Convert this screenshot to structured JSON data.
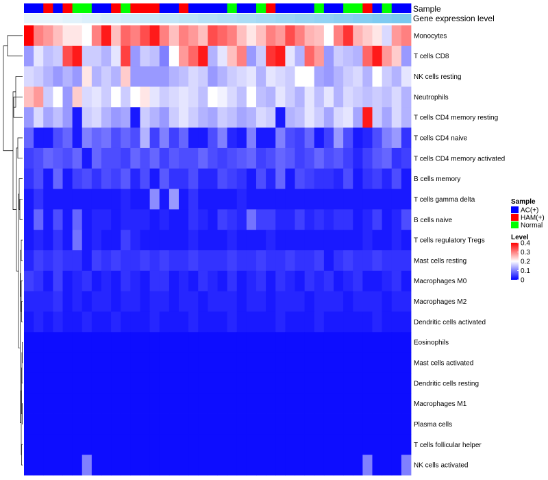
{
  "chart_data": {
    "type": "heatmap",
    "annotation_labels": [
      "Sample",
      "Gene expression level"
    ],
    "sample_groups": [
      "AC(+)",
      "AC(+)",
      "HAM(+)",
      "AC(+)",
      "HAM(+)",
      "Normal",
      "Normal",
      "AC(+)",
      "AC(+)",
      "HAM(+)",
      "Normal",
      "HAM(+)",
      "HAM(+)",
      "HAM(+)",
      "AC(+)",
      "AC(+)",
      "HAM(+)",
      "AC(+)",
      "AC(+)",
      "AC(+)",
      "AC(+)",
      "Normal",
      "AC(+)",
      "AC(+)",
      "Normal",
      "HAM(+)",
      "AC(+)",
      "AC(+)",
      "AC(+)",
      "AC(+)",
      "Normal",
      "AC(+)",
      "AC(+)",
      "Normal",
      "Normal",
      "HAM(+)",
      "AC(+)",
      "Normal",
      "AC(+)",
      "AC(+)"
    ],
    "gene_expression_level": [
      0.05,
      0.05,
      0.05,
      0.05,
      0.06,
      0.06,
      0.07,
      0.07,
      0.08,
      0.08,
      0.09,
      0.09,
      0.1,
      0.1,
      0.11,
      0.11,
      0.12,
      0.12,
      0.13,
      0.13,
      0.14,
      0.14,
      0.15,
      0.15,
      0.16,
      0.16,
      0.17,
      0.17,
      0.18,
      0.18,
      0.19,
      0.19,
      0.2,
      0.2,
      0.21,
      0.21,
      0.22,
      0.22,
      0.23,
      0.23
    ],
    "rows": [
      "Monocytes",
      "T cells CD8",
      "NK cells resting",
      "Neutrophils",
      "T cells CD4 memory resting",
      "T cells CD4 naive",
      "T cells CD4 memory activated",
      "B cells memory",
      "T cells gamma delta",
      "B cells naive",
      "T cells regulatory  Tregs",
      "Mast cells resting",
      "Macrophages M0",
      "Macrophages M2",
      "Dendritic cells activated",
      "Eosinophils",
      "Mast cells activated",
      "Dendritic cells resting",
      "Macrophages M1",
      "Plasma cells",
      "T cells follicular helper",
      "NK cells activated"
    ],
    "values": [
      [
        0.4,
        0.3,
        0.28,
        0.25,
        0.22,
        0.22,
        0.2,
        0.3,
        0.38,
        0.25,
        0.32,
        0.3,
        0.34,
        0.38,
        0.3,
        0.25,
        0.3,
        0.28,
        0.25,
        0.34,
        0.32,
        0.3,
        0.25,
        0.22,
        0.25,
        0.3,
        0.28,
        0.34,
        0.3,
        0.26,
        0.25,
        0.2,
        0.3,
        0.36,
        0.26,
        0.24,
        0.22,
        0.17,
        0.28,
        0.3
      ],
      [
        0.12,
        0.18,
        0.15,
        0.16,
        0.34,
        0.38,
        0.16,
        0.16,
        0.14,
        0.18,
        0.35,
        0.12,
        0.16,
        0.15,
        0.1,
        0.2,
        0.28,
        0.32,
        0.38,
        0.14,
        0.18,
        0.25,
        0.3,
        0.12,
        0.16,
        0.36,
        0.38,
        0.18,
        0.14,
        0.32,
        0.28,
        0.12,
        0.16,
        0.15,
        0.14,
        0.32,
        0.38,
        0.28,
        0.24,
        0.12
      ],
      [
        0.17,
        0.16,
        0.14,
        0.12,
        0.14,
        0.12,
        0.22,
        0.14,
        0.16,
        0.14,
        0.24,
        0.12,
        0.12,
        0.12,
        0.12,
        0.14,
        0.15,
        0.17,
        0.16,
        0.12,
        0.14,
        0.16,
        0.17,
        0.18,
        0.14,
        0.18,
        0.17,
        0.16,
        0.2,
        0.2,
        0.13,
        0.12,
        0.14,
        0.16,
        0.17,
        0.14,
        0.2,
        0.16,
        0.14,
        0.18
      ],
      [
        0.25,
        0.28,
        0.16,
        0.2,
        0.12,
        0.24,
        0.17,
        0.18,
        0.16,
        0.2,
        0.16,
        0.2,
        0.22,
        0.18,
        0.16,
        0.17,
        0.18,
        0.17,
        0.15,
        0.2,
        0.19,
        0.17,
        0.15,
        0.2,
        0.15,
        0.14,
        0.18,
        0.16,
        0.14,
        0.18,
        0.15,
        0.18,
        0.14,
        0.17,
        0.16,
        0.15,
        0.16,
        0.15,
        0.17,
        0.14
      ],
      [
        0.12,
        0.17,
        0.13,
        0.15,
        0.12,
        0.02,
        0.16,
        0.17,
        0.14,
        0.12,
        0.13,
        0.02,
        0.16,
        0.14,
        0.12,
        0.16,
        0.18,
        0.16,
        0.14,
        0.13,
        0.16,
        0.15,
        0.13,
        0.14,
        0.17,
        0.16,
        0.02,
        0.14,
        0.15,
        0.18,
        0.16,
        0.13,
        0.17,
        0.18,
        0.13,
        0.38,
        0.16,
        0.13,
        0.17,
        0.14
      ],
      [
        0.08,
        0.02,
        0.02,
        0.06,
        0.08,
        0.02,
        0.1,
        0.08,
        0.09,
        0.06,
        0.08,
        0.06,
        0.14,
        0.05,
        0.1,
        0.05,
        0.08,
        0.02,
        0.02,
        0.06,
        0.1,
        0.03,
        0.02,
        0.1,
        0.02,
        0.02,
        0.1,
        0.06,
        0.05,
        0.08,
        0.02,
        0.05,
        0.12,
        0.06,
        0.02,
        0.03,
        0.06,
        0.1,
        0.12,
        0.04
      ],
      [
        0.05,
        0.06,
        0.08,
        0.07,
        0.06,
        0.08,
        0.02,
        0.08,
        0.06,
        0.06,
        0.05,
        0.08,
        0.06,
        0.08,
        0.05,
        0.07,
        0.06,
        0.06,
        0.08,
        0.06,
        0.05,
        0.06,
        0.07,
        0.08,
        0.05,
        0.06,
        0.08,
        0.07,
        0.05,
        0.06,
        0.08,
        0.06,
        0.07,
        0.05,
        0.03,
        0.05,
        0.07,
        0.08,
        0.04,
        0.05
      ],
      [
        0.04,
        0.06,
        0.02,
        0.08,
        0.02,
        0.05,
        0.06,
        0.04,
        0.06,
        0.05,
        0.07,
        0.03,
        0.06,
        0.02,
        0.07,
        0.04,
        0.04,
        0.06,
        0.03,
        0.03,
        0.06,
        0.05,
        0.04,
        0.02,
        0.06,
        0.03,
        0.08,
        0.02,
        0.06,
        0.05,
        0.04,
        0.04,
        0.03,
        0.06,
        0.02,
        0.04,
        0.05,
        0.03,
        0.06,
        0.02
      ],
      [
        0.02,
        0.04,
        0.02,
        0.02,
        0.02,
        0.02,
        0.02,
        0.02,
        0.02,
        0.02,
        0.03,
        0.02,
        0.02,
        0.11,
        0.02,
        0.12,
        0.02,
        0.04,
        0.02,
        0.02,
        0.02,
        0.02,
        0.03,
        0.02,
        0.02,
        0.02,
        0.02,
        0.02,
        0.02,
        0.02,
        0.02,
        0.02,
        0.02,
        0.02,
        0.02,
        0.02,
        0.02,
        0.02,
        0.02,
        0.02
      ],
      [
        0.02,
        0.08,
        0.02,
        0.06,
        0.02,
        0.08,
        0.02,
        0.03,
        0.03,
        0.02,
        0.03,
        0.03,
        0.03,
        0.02,
        0.03,
        0.02,
        0.02,
        0.04,
        0.03,
        0.02,
        0.05,
        0.04,
        0.03,
        0.09,
        0.05,
        0.05,
        0.03,
        0.03,
        0.05,
        0.03,
        0.04,
        0.03,
        0.04,
        0.04,
        0.02,
        0.03,
        0.05,
        0.02,
        0.03,
        0.06
      ],
      [
        0.02,
        0.03,
        0.02,
        0.04,
        0.02,
        0.09,
        0.02,
        0.03,
        0.02,
        0.02,
        0.05,
        0.03,
        0.02,
        0.02,
        0.02,
        0.02,
        0.02,
        0.03,
        0.02,
        0.02,
        0.02,
        0.03,
        0.02,
        0.02,
        0.02,
        0.03,
        0.02,
        0.02,
        0.02,
        0.02,
        0.02,
        0.02,
        0.02,
        0.02,
        0.02,
        0.03,
        0.02,
        0.02,
        0.03,
        0.02
      ],
      [
        0.03,
        0.05,
        0.04,
        0.05,
        0.04,
        0.04,
        0.02,
        0.05,
        0.04,
        0.05,
        0.04,
        0.04,
        0.05,
        0.04,
        0.05,
        0.04,
        0.04,
        0.05,
        0.04,
        0.04,
        0.04,
        0.05,
        0.04,
        0.04,
        0.05,
        0.04,
        0.04,
        0.05,
        0.04,
        0.04,
        0.05,
        0.02,
        0.04,
        0.05,
        0.04,
        0.04,
        0.05,
        0.04,
        0.04,
        0.04
      ],
      [
        0.05,
        0.04,
        0.02,
        0.05,
        0.02,
        0.03,
        0.04,
        0.02,
        0.03,
        0.02,
        0.04,
        0.03,
        0.02,
        0.04,
        0.04,
        0.02,
        0.03,
        0.02,
        0.04,
        0.03,
        0.02,
        0.04,
        0.02,
        0.03,
        0.04,
        0.02,
        0.04,
        0.03,
        0.02,
        0.04,
        0.03,
        0.04,
        0.02,
        0.03,
        0.04,
        0.02,
        0.02,
        0.03,
        0.04,
        0.02
      ],
      [
        0.03,
        0.03,
        0.03,
        0.04,
        0.02,
        0.03,
        0.02,
        0.03,
        0.03,
        0.02,
        0.03,
        0.03,
        0.02,
        0.03,
        0.03,
        0.02,
        0.03,
        0.03,
        0.02,
        0.03,
        0.03,
        0.03,
        0.02,
        0.03,
        0.03,
        0.02,
        0.03,
        0.03,
        0.03,
        0.02,
        0.03,
        0.03,
        0.03,
        0.02,
        0.03,
        0.03,
        0.03,
        0.02,
        0.03,
        0.03
      ],
      [
        0.02,
        0.03,
        0.02,
        0.03,
        0.02,
        0.02,
        0.03,
        0.02,
        0.02,
        0.03,
        0.02,
        0.02,
        0.02,
        0.03,
        0.02,
        0.02,
        0.02,
        0.03,
        0.02,
        0.02,
        0.02,
        0.03,
        0.02,
        0.02,
        0.02,
        0.02,
        0.03,
        0.02,
        0.02,
        0.02,
        0.03,
        0.02,
        0.02,
        0.02,
        0.02,
        0.02,
        0.03,
        0.02,
        0.02,
        0.02
      ],
      [
        0.01,
        0.01,
        0.01,
        0.01,
        0.01,
        0.01,
        0.01,
        0.01,
        0.01,
        0.01,
        0.01,
        0.01,
        0.01,
        0.01,
        0.01,
        0.01,
        0.01,
        0.01,
        0.01,
        0.01,
        0.01,
        0.01,
        0.01,
        0.01,
        0.01,
        0.01,
        0.01,
        0.01,
        0.01,
        0.01,
        0.01,
        0.01,
        0.01,
        0.01,
        0.01,
        0.01,
        0.01,
        0.01,
        0.01,
        0.01
      ],
      [
        0.01,
        0.01,
        0.01,
        0.01,
        0.01,
        0.01,
        0.01,
        0.01,
        0.01,
        0.01,
        0.01,
        0.01,
        0.01,
        0.01,
        0.01,
        0.01,
        0.01,
        0.01,
        0.01,
        0.01,
        0.01,
        0.01,
        0.01,
        0.01,
        0.01,
        0.01,
        0.01,
        0.01,
        0.01,
        0.01,
        0.01,
        0.01,
        0.01,
        0.01,
        0.01,
        0.01,
        0.01,
        0.01,
        0.01,
        0.01
      ],
      [
        0.01,
        0.01,
        0.01,
        0.01,
        0.01,
        0.01,
        0.01,
        0.01,
        0.01,
        0.01,
        0.01,
        0.01,
        0.01,
        0.01,
        0.01,
        0.01,
        0.01,
        0.01,
        0.01,
        0.01,
        0.01,
        0.01,
        0.01,
        0.01,
        0.01,
        0.01,
        0.01,
        0.01,
        0.01,
        0.01,
        0.01,
        0.01,
        0.01,
        0.01,
        0.01,
        0.01,
        0.01,
        0.01,
        0.01,
        0.01
      ],
      [
        0.01,
        0.01,
        0.01,
        0.01,
        0.01,
        0.01,
        0.01,
        0.01,
        0.01,
        0.01,
        0.01,
        0.01,
        0.01,
        0.01,
        0.01,
        0.01,
        0.01,
        0.01,
        0.01,
        0.01,
        0.01,
        0.01,
        0.01,
        0.01,
        0.01,
        0.01,
        0.01,
        0.01,
        0.01,
        0.01,
        0.01,
        0.01,
        0.01,
        0.01,
        0.01,
        0.01,
        0.01,
        0.01,
        0.01,
        0.01
      ],
      [
        0.01,
        0.01,
        0.01,
        0.01,
        0.01,
        0.01,
        0.01,
        0.01,
        0.01,
        0.01,
        0.01,
        0.01,
        0.01,
        0.01,
        0.01,
        0.01,
        0.01,
        0.01,
        0.01,
        0.01,
        0.01,
        0.01,
        0.01,
        0.01,
        0.01,
        0.01,
        0.01,
        0.01,
        0.01,
        0.01,
        0.01,
        0.01,
        0.01,
        0.01,
        0.01,
        0.01,
        0.01,
        0.01,
        0.01,
        0.01
      ],
      [
        0.01,
        0.01,
        0.01,
        0.01,
        0.01,
        0.01,
        0.01,
        0.01,
        0.01,
        0.01,
        0.01,
        0.01,
        0.01,
        0.01,
        0.01,
        0.01,
        0.01,
        0.01,
        0.01,
        0.01,
        0.01,
        0.01,
        0.01,
        0.01,
        0.01,
        0.01,
        0.01,
        0.01,
        0.01,
        0.01,
        0.01,
        0.01,
        0.01,
        0.01,
        0.01,
        0.01,
        0.01,
        0.01,
        0.01,
        0.01
      ],
      [
        0.01,
        0.01,
        0.01,
        0.01,
        0.01,
        0.01,
        0.1,
        0.01,
        0.01,
        0.01,
        0.01,
        0.01,
        0.01,
        0.01,
        0.01,
        0.01,
        0.01,
        0.01,
        0.01,
        0.01,
        0.01,
        0.01,
        0.01,
        0.01,
        0.01,
        0.01,
        0.01,
        0.01,
        0.01,
        0.01,
        0.01,
        0.01,
        0.01,
        0.01,
        0.01,
        0.1,
        0.01,
        0.01,
        0.01,
        0.1
      ]
    ],
    "legend": {
      "sample_title": "Sample",
      "sample_items": [
        {
          "label": "AC(+)",
          "color": "#0000ff"
        },
        {
          "label": "HAM(+)",
          "color": "#ff0000"
        },
        {
          "label": "Normal",
          "color": "#00ff00"
        }
      ],
      "level_title": "Level",
      "level_ticks": [
        "0.4",
        "0.3",
        "0.2",
        "0.1",
        "0"
      ],
      "level_range": [
        0,
        0.4
      ],
      "level_low_color": "#0000ff",
      "level_mid_color": "#ffffff",
      "level_high_color": "#ff0000"
    },
    "row_dendrogram": true
  }
}
